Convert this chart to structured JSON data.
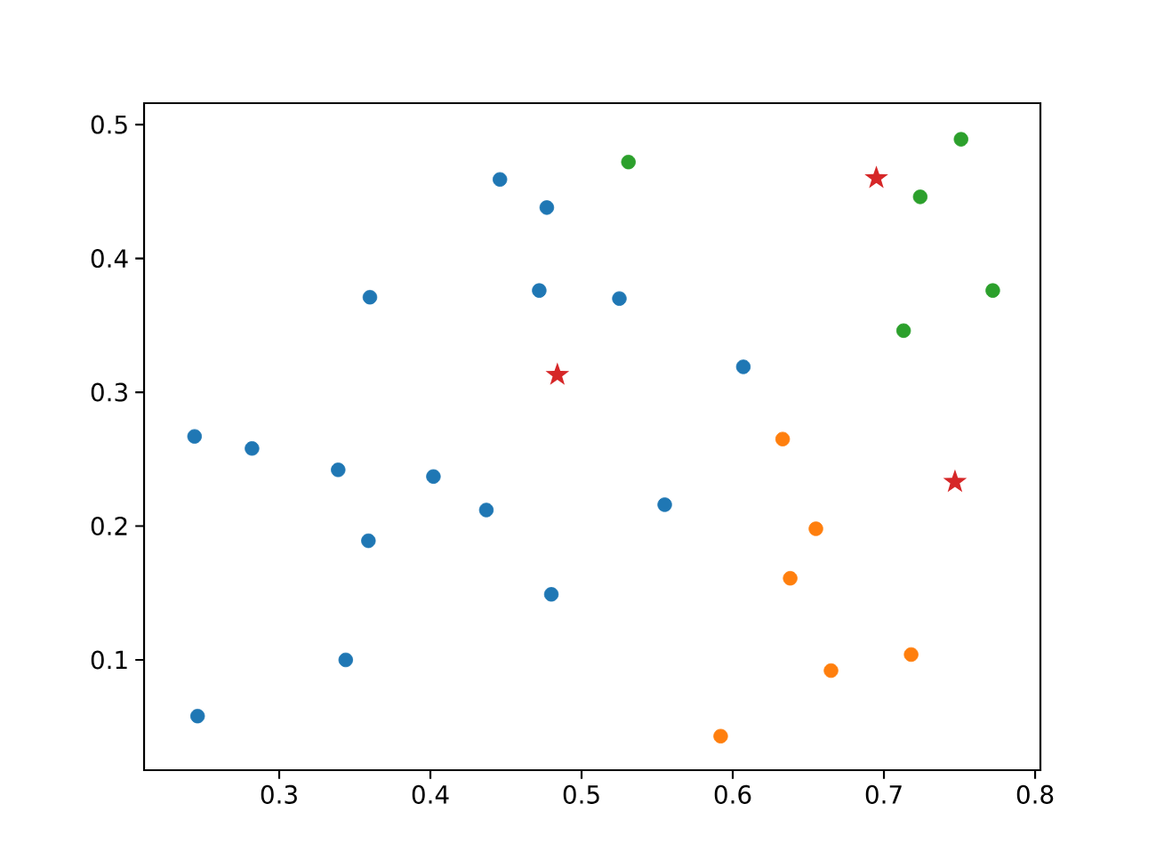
{
  "chart_data": {
    "type": "scatter",
    "xlim": [
      0.2106,
      0.8035
    ],
    "ylim": [
      0.0176,
      0.516
    ],
    "xticks": [
      0.3,
      0.4,
      0.5,
      0.6,
      0.7,
      0.8
    ],
    "yticks": [
      0.1,
      0.2,
      0.3,
      0.4,
      0.5
    ],
    "grid": false,
    "marker": "circle",
    "series": [
      {
        "color": "#1f77b4",
        "x": [
          0.244,
          0.282,
          0.339,
          0.359,
          0.36,
          0.402,
          0.437,
          0.446,
          0.477,
          0.472,
          0.525,
          0.555,
          0.607,
          0.48,
          0.344,
          0.246
        ],
        "values": [
          0.267,
          0.258,
          0.242,
          0.189,
          0.371,
          0.237,
          0.212,
          0.459,
          0.438,
          0.376,
          0.37,
          0.216,
          0.319,
          0.149,
          0.1,
          0.058
        ]
      },
      {
        "color": "#ff7f0e",
        "x": [
          0.633,
          0.655,
          0.638,
          0.665,
          0.718,
          0.592
        ],
        "values": [
          0.265,
          0.198,
          0.161,
          0.092,
          0.104,
          0.043
        ]
      },
      {
        "color": "#2ca02c",
        "x": [
          0.531,
          0.751,
          0.724,
          0.772,
          0.713
        ],
        "values": [
          0.472,
          0.489,
          0.446,
          0.376,
          0.346
        ]
      },
      {
        "color": "#d62728",
        "marker": "star",
        "x": [
          0.484,
          0.695,
          0.747
        ],
        "values": [
          0.313,
          0.46,
          0.233
        ]
      }
    ]
  }
}
